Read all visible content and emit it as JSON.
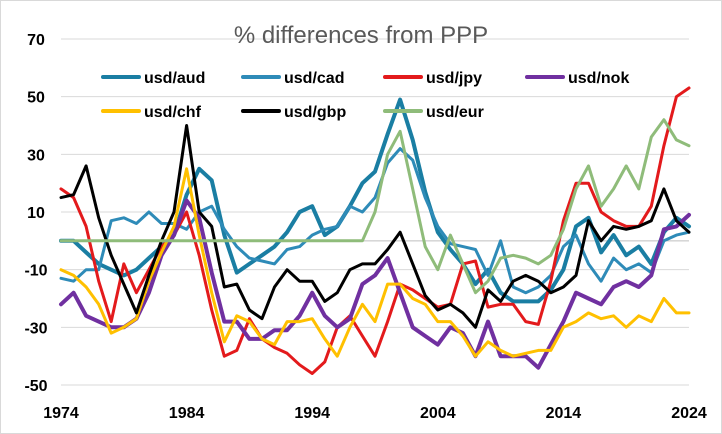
{
  "chart_data": {
    "type": "line",
    "title": "% differences from PPP",
    "xlabel": "",
    "ylabel": "",
    "xlim": [
      1974,
      2024
    ],
    "ylim": [
      -50,
      70
    ],
    "yticks": [
      -50,
      -30,
      -10,
      10,
      30,
      50,
      70
    ],
    "xticks": [
      1974,
      1984,
      1994,
      2004,
      2014,
      2024
    ],
    "y_tick_labels": [
      "-50",
      "-30",
      "-10",
      "10",
      "30",
      "50",
      "70"
    ],
    "x_tick_labels": [
      "1974",
      "1984",
      "1994",
      "2004",
      "2014",
      "2024"
    ],
    "grid": "horizontal",
    "legend_position": "top",
    "x": [
      1974,
      1975,
      1976,
      1977,
      1978,
      1979,
      1980,
      1981,
      1982,
      1983,
      1984,
      1985,
      1986,
      1987,
      1988,
      1989,
      1990,
      1991,
      1992,
      1993,
      1994,
      1995,
      1996,
      1997,
      1998,
      1999,
      2000,
      2001,
      2002,
      2003,
      2004,
      2005,
      2006,
      2007,
      2008,
      2009,
      2010,
      2011,
      2012,
      2013,
      2014,
      2015,
      2016,
      2017,
      2018,
      2019,
      2020,
      2021,
      2022,
      2023,
      2024
    ],
    "series": [
      {
        "name": "usd/aud",
        "color": "#1a7ea3",
        "width": 4,
        "values": [
          0,
          0,
          -4,
          -8,
          -10,
          -12,
          -10,
          -6,
          -2,
          2,
          16,
          25,
          21,
          2,
          -11,
          -8,
          -5,
          -2,
          3,
          10,
          12,
          2,
          5,
          12,
          20,
          24,
          37,
          49,
          35,
          17,
          3,
          -3,
          -8,
          -15,
          -10,
          -18,
          -21,
          -21,
          -21,
          -17,
          -10,
          5,
          8,
          -4,
          2,
          -5,
          -2,
          -8,
          3,
          8,
          5
        ]
      },
      {
        "name": "usd/cad",
        "color": "#2e8bb8",
        "width": 3,
        "values": [
          -13,
          -14,
          -10,
          -10,
          7,
          8,
          6,
          10,
          6,
          6,
          4,
          10,
          12,
          4,
          -2,
          -6,
          -7,
          -8,
          -3,
          -2,
          2,
          4,
          5,
          12,
          10,
          15,
          27,
          32,
          28,
          15,
          5,
          -1,
          -2,
          -3,
          -12,
          0,
          -16,
          -18,
          -16,
          -12,
          -2,
          2,
          -8,
          -14,
          -6,
          -10,
          -8,
          -11,
          0,
          2,
          3
        ]
      },
      {
        "name": "usd/jpy",
        "color": "#e31a1c",
        "width": 3,
        "values": [
          18,
          15,
          5,
          -14,
          -28,
          -8,
          -18,
          -10,
          -2,
          2,
          10,
          -5,
          -24,
          -40,
          -38,
          -27,
          -34,
          -37,
          -39,
          -43,
          -46,
          -42,
          -30,
          -26,
          -33,
          -40,
          -28,
          -15,
          -17,
          -20,
          -23,
          -22,
          -8,
          -7,
          -23,
          -22,
          -22,
          -28,
          -29,
          -14,
          7,
          20,
          20,
          10,
          7,
          5,
          5,
          12,
          33,
          50,
          53
        ]
      },
      {
        "name": "usd/nok",
        "color": "#7030a0",
        "width": 4,
        "values": [
          -22,
          -18,
          -26,
          -28,
          -30,
          -30,
          -27,
          -18,
          -5,
          2,
          14,
          8,
          -11,
          -28,
          -28,
          -34,
          -34,
          -31,
          -31,
          -26,
          -18,
          -26,
          -30,
          -27,
          -15,
          -12,
          -6,
          -18,
          -30,
          -33,
          -36,
          -30,
          -32,
          -40,
          -28,
          -40,
          -40,
          -40,
          -44,
          -36,
          -28,
          -18,
          -20,
          -22,
          -16,
          -14,
          -16,
          -12,
          4,
          5,
          9
        ]
      },
      {
        "name": "usd/chf",
        "color": "#ffc000",
        "width": 3,
        "values": [
          -10,
          -12,
          -16,
          -22,
          -32,
          -30,
          -27,
          -14,
          -4,
          5,
          25,
          2,
          -18,
          -35,
          -26,
          -28,
          -34,
          -36,
          -28,
          -28,
          -27,
          -34,
          -40,
          -30,
          -22,
          -28,
          -15,
          -15,
          -20,
          -22,
          -28,
          -28,
          -33,
          -40,
          -35,
          -38,
          -40,
          -39,
          -38,
          -38,
          -30,
          -28,
          -25,
          -27,
          -26,
          -30,
          -26,
          -28,
          -20,
          -25,
          -25
        ]
      },
      {
        "name": "usd/gbp",
        "color": "#000000",
        "width": 3,
        "values": [
          15,
          16,
          26,
          8,
          -5,
          -15,
          -25,
          -12,
          0,
          10,
          40,
          10,
          5,
          -16,
          -15,
          -24,
          -27,
          -16,
          -10,
          -14,
          -14,
          -21,
          -18,
          -10,
          -8,
          -8,
          -3,
          3,
          -8,
          -19,
          -24,
          -22,
          -25,
          -30,
          -17,
          -21,
          -14,
          -12,
          -14,
          -18,
          -16,
          -12,
          7,
          0,
          5,
          4,
          5,
          7,
          18,
          7,
          3
        ]
      },
      {
        "name": "usd/eur",
        "color": "#8fbc7a",
        "width": 3,
        "values": [
          0,
          0,
          0,
          0,
          0,
          0,
          0,
          0,
          0,
          0,
          0,
          0,
          0,
          0,
          0,
          0,
          0,
          0,
          0,
          0,
          0,
          0,
          0,
          0,
          0,
          10,
          30,
          38,
          18,
          -2,
          -10,
          2,
          -8,
          -18,
          -14,
          -6,
          -5,
          -6,
          -8,
          -5,
          4,
          18,
          26,
          12,
          18,
          26,
          18,
          36,
          42,
          35,
          33
        ]
      }
    ]
  }
}
